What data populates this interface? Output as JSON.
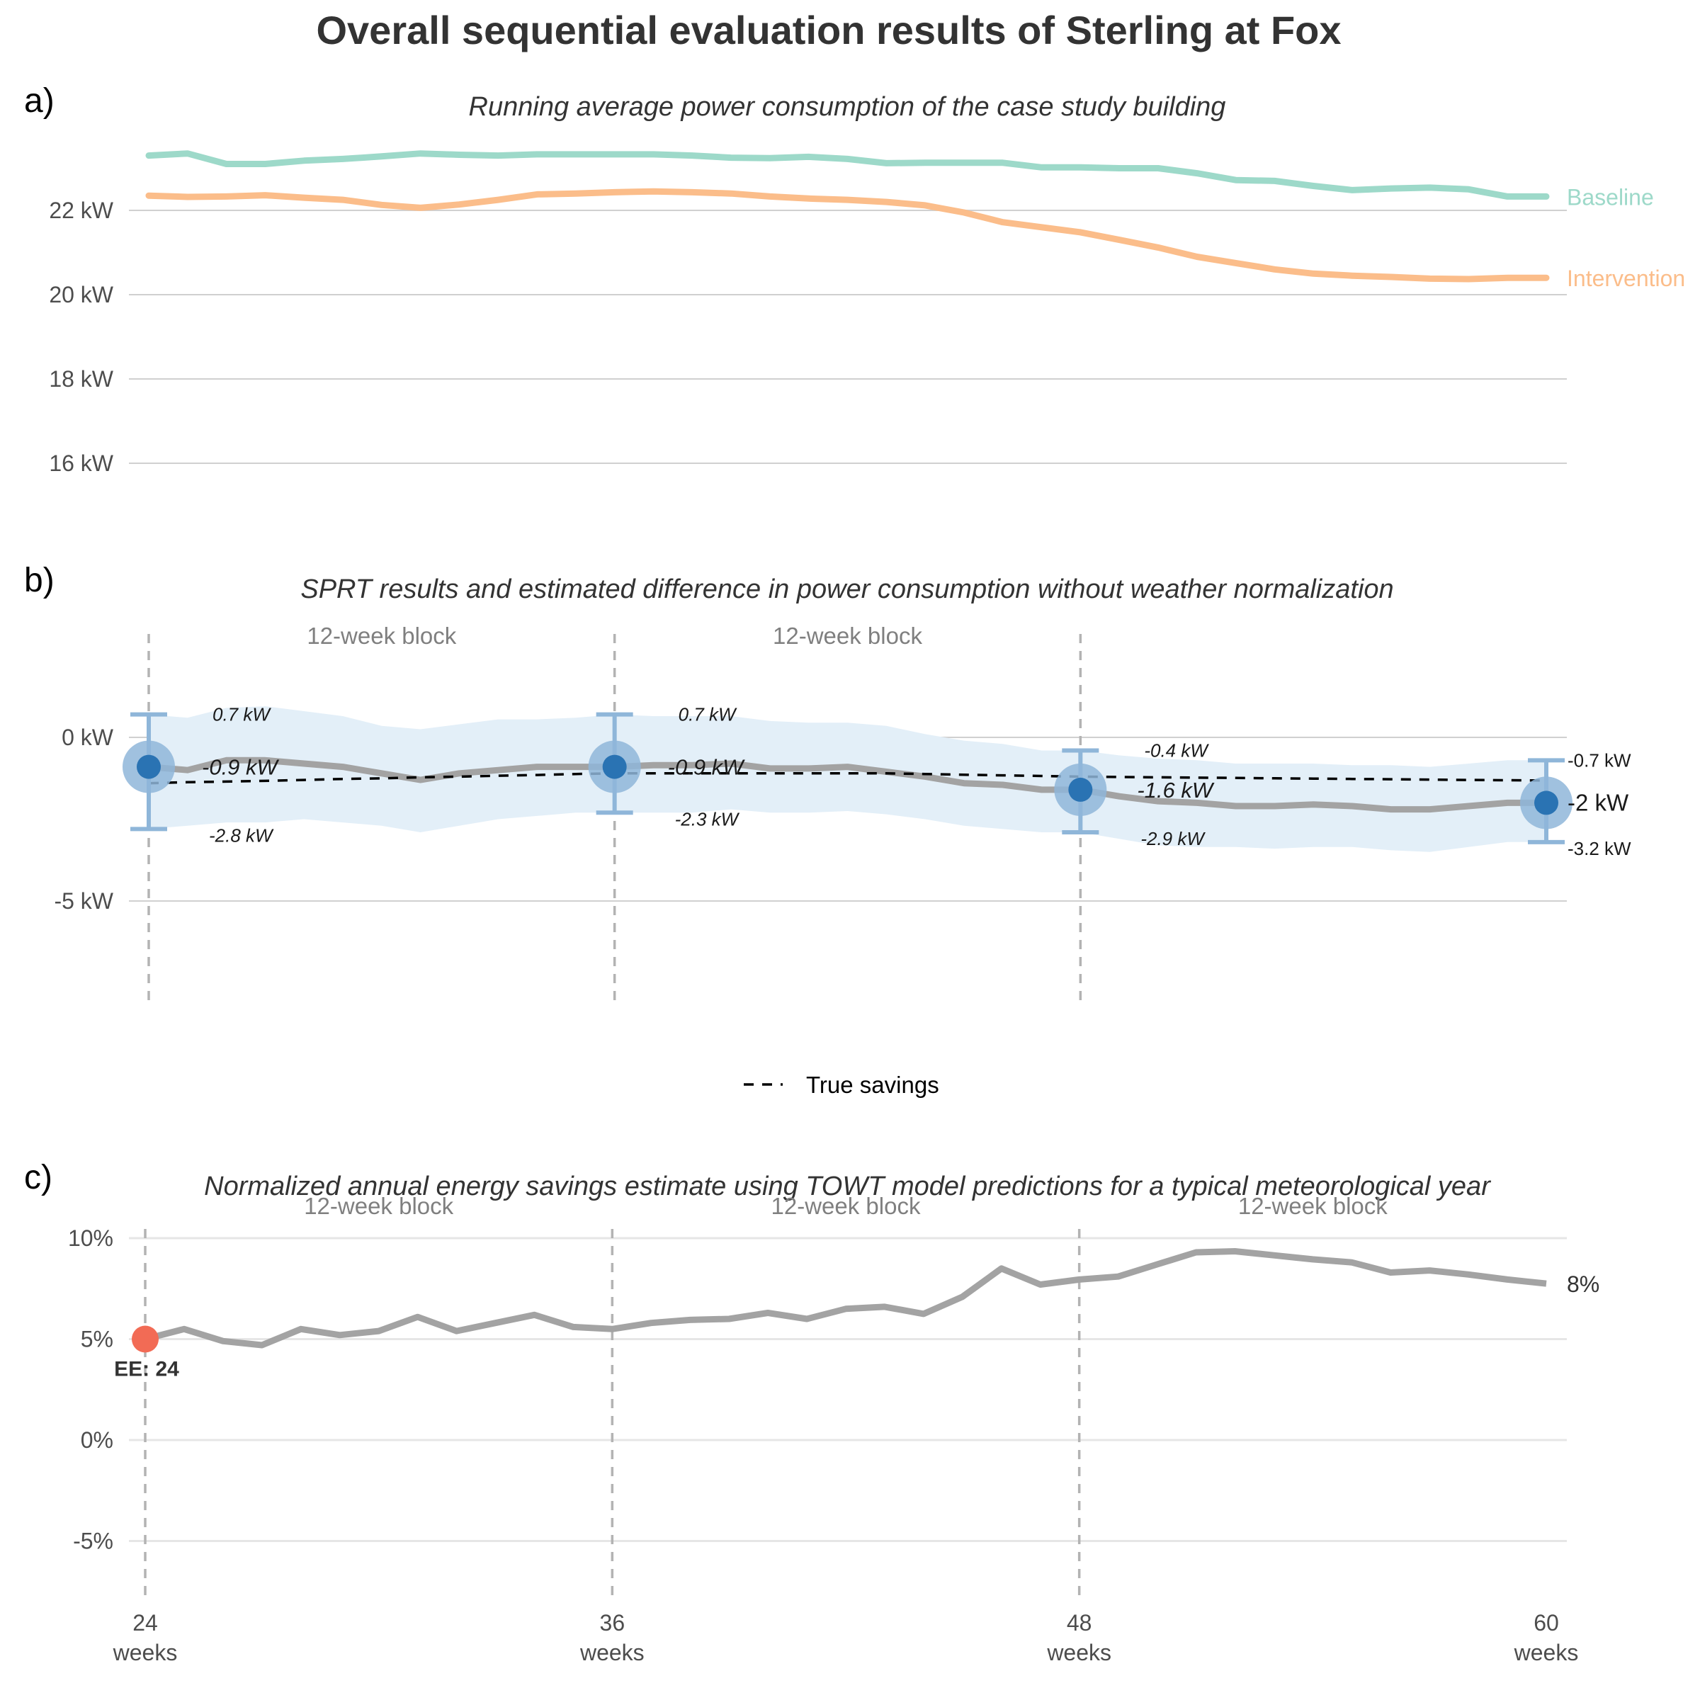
{
  "figure": {
    "title": "Overall sequential evaluation results of Sterling at Fox",
    "colors": {
      "baseline": "#9dd9c9",
      "intervention": "#fbbd8a",
      "estimate_line": "#a3a3a3",
      "ci_ribbon": "#e3eff8",
      "point": "#2a73b3",
      "point_halo": "#8fb6d9",
      "early_exit": "#f26b55",
      "gridline": "#d0d0d0",
      "block_divider": "#b3b3b3"
    }
  },
  "chart_data": [
    {
      "panel": "a)",
      "type": "line",
      "title": "Running average power consumption of the case study building",
      "x": [
        24,
        25,
        26,
        27,
        28,
        29,
        30,
        31,
        32,
        33,
        34,
        35,
        36,
        37,
        38,
        39,
        40,
        41,
        42,
        43,
        44,
        45,
        46,
        47,
        48,
        49,
        50,
        51,
        52,
        53,
        54,
        55,
        56,
        57,
        58,
        59,
        60
      ],
      "series": [
        {
          "name": "Baseline",
          "color": "#9dd9c9",
          "values": [
            23.3,
            23.35,
            23.1,
            23.1,
            23.18,
            23.22,
            23.28,
            23.35,
            23.32,
            23.3,
            23.33,
            23.33,
            23.33,
            23.33,
            23.3,
            23.25,
            23.24,
            23.27,
            23.22,
            23.12,
            23.13,
            23.13,
            23.13,
            23.02,
            23.02,
            23.0,
            23.0,
            22.88,
            22.72,
            22.7,
            22.58,
            22.48,
            22.52,
            22.54,
            22.5,
            22.33,
            22.33
          ]
        },
        {
          "name": "Intervention",
          "color": "#fbbd8a",
          "values": [
            22.35,
            22.32,
            22.33,
            22.36,
            22.3,
            22.25,
            22.13,
            22.06,
            22.14,
            22.25,
            22.38,
            22.4,
            22.43,
            22.45,
            22.43,
            22.4,
            22.33,
            22.28,
            22.25,
            22.2,
            22.12,
            21.95,
            21.72,
            21.6,
            21.48,
            21.3,
            21.12,
            20.9,
            20.75,
            20.6,
            20.5,
            20.45,
            20.42,
            20.38,
            20.37,
            20.4,
            20.4
          ]
        }
      ],
      "yticks": [
        16,
        18,
        20,
        22
      ],
      "ytick_labels": [
        "16 kW",
        "18 kW",
        "20 kW",
        "22 kW"
      ],
      "ylim": [
        15.5,
        24
      ],
      "grid": true
    },
    {
      "panel": "b)",
      "type": "line",
      "title": "SPRT results and estimated difference in power consumption without weather normalization",
      "x": [
        24,
        25,
        26,
        27,
        28,
        29,
        30,
        31,
        32,
        33,
        34,
        35,
        36,
        37,
        38,
        39,
        40,
        41,
        42,
        43,
        44,
        45,
        46,
        47,
        48,
        49,
        50,
        51,
        52,
        53,
        54,
        55,
        56,
        57,
        58,
        59,
        60
      ],
      "estimate": [
        -0.9,
        -1.0,
        -0.7,
        -0.7,
        -0.8,
        -0.9,
        -1.1,
        -1.3,
        -1.1,
        -1.0,
        -0.9,
        -0.9,
        -0.9,
        -0.85,
        -0.85,
        -0.8,
        -0.95,
        -0.95,
        -0.9,
        -1.05,
        -1.2,
        -1.4,
        -1.45,
        -1.6,
        -1.6,
        -1.8,
        -1.95,
        -2.0,
        -2.1,
        -2.1,
        -2.05,
        -2.1,
        -2.2,
        -2.2,
        -2.1,
        -2.0,
        -2.0
      ],
      "ci_lower": [
        -2.8,
        -2.7,
        -2.6,
        -2.6,
        -2.5,
        -2.6,
        -2.7,
        -2.9,
        -2.7,
        -2.5,
        -2.4,
        -2.3,
        -2.3,
        -2.3,
        -2.3,
        -2.2,
        -2.3,
        -2.3,
        -2.25,
        -2.35,
        -2.5,
        -2.7,
        -2.8,
        -2.9,
        -2.9,
        -3.1,
        -3.3,
        -3.35,
        -3.35,
        -3.4,
        -3.35,
        -3.35,
        -3.45,
        -3.5,
        -3.35,
        -3.2,
        -3.2
      ],
      "ci_upper": [
        0.7,
        0.6,
        0.9,
        0.95,
        0.8,
        0.65,
        0.35,
        0.25,
        0.4,
        0.55,
        0.55,
        0.6,
        0.7,
        0.65,
        0.65,
        0.65,
        0.5,
        0.45,
        0.45,
        0.35,
        0.1,
        -0.1,
        -0.2,
        -0.4,
        -0.4,
        -0.55,
        -0.65,
        -0.7,
        -0.8,
        -0.8,
        -0.8,
        -0.85,
        -0.85,
        -0.9,
        -0.8,
        -0.7,
        -0.7
      ],
      "true_savings": [
        -1.4,
        -1.37,
        -1.35,
        -1.33,
        -1.3,
        -1.27,
        -1.25,
        -1.22,
        -1.2,
        -1.17,
        -1.15,
        -1.12,
        -1.1,
        -1.1,
        -1.1,
        -1.1,
        -1.1,
        -1.1,
        -1.1,
        -1.1,
        -1.12,
        -1.14,
        -1.16,
        -1.18,
        -1.2,
        -1.21,
        -1.22,
        -1.23,
        -1.24,
        -1.25,
        -1.26,
        -1.27,
        -1.28,
        -1.29,
        -1.3,
        -1.31,
        -1.32
      ],
      "checkpoints": [
        {
          "x": 24,
          "estimate": -0.9,
          "lower": -2.8,
          "upper": 0.7,
          "label_est": "-0.9 kW",
          "label_lower": "-2.8 kW",
          "label_upper": "0.7 kW"
        },
        {
          "x": 36,
          "estimate": -0.9,
          "lower": -2.3,
          "upper": 0.7,
          "label_est": "-0.9 kW",
          "label_lower": "-2.3 kW",
          "label_upper": "0.7 kW"
        },
        {
          "x": 48,
          "estimate": -1.6,
          "lower": -2.9,
          "upper": -0.4,
          "label_est": "-1.6 kW",
          "label_lower": "-2.9 kW",
          "label_upper": "-0.4 kW"
        },
        {
          "x": 60,
          "estimate": -2.0,
          "lower": -3.2,
          "upper": -0.7,
          "label_est": "-2 kW",
          "label_lower": "-3.2 kW",
          "label_upper": "-0.7 kW"
        }
      ],
      "block_labels": [
        "12-week block",
        "12-week block"
      ],
      "legend": {
        "entries": [
          "True savings"
        ],
        "placement": "bottom"
      },
      "yticks": [
        -5,
        0
      ],
      "ytick_labels": [
        "-5 kW",
        "0 kW"
      ],
      "ylim": [
        -8,
        3
      ],
      "grid": true
    },
    {
      "panel": "c)",
      "type": "line",
      "title": "Normalized annual energy savings estimate using TOWT model predictions for a typical meteorological year",
      "x": [
        24,
        25,
        26,
        27,
        28,
        29,
        30,
        31,
        32,
        33,
        34,
        35,
        36,
        37,
        38,
        39,
        40,
        41,
        42,
        43,
        44,
        45,
        46,
        47,
        48,
        49,
        50,
        51,
        52,
        53,
        54,
        55,
        56,
        57,
        58,
        59,
        60
      ],
      "values": [
        5.0,
        5.5,
        4.9,
        4.7,
        5.5,
        5.2,
        5.4,
        6.1,
        5.4,
        5.8,
        6.2,
        5.6,
        5.5,
        5.8,
        5.95,
        6.0,
        6.3,
        6.0,
        6.5,
        6.6,
        6.25,
        7.1,
        8.5,
        7.7,
        7.95,
        8.1,
        8.7,
        9.3,
        9.35,
        9.15,
        8.95,
        8.8,
        8.3,
        8.4,
        8.2,
        7.95,
        7.75
      ],
      "end_label": "8%",
      "early_exit": {
        "x": 24,
        "value": 5.0,
        "label": "EE: 24"
      },
      "block_labels": [
        "12-week block",
        "12-week block",
        "12-week block"
      ],
      "yticks": [
        -5,
        0,
        5,
        10
      ],
      "ytick_labels": [
        "-5%",
        "0%",
        "5%",
        "10%"
      ],
      "ylim": [
        -8,
        11
      ],
      "xticks": [
        24,
        36,
        48,
        60
      ],
      "xtick_labels": [
        [
          "24",
          "weeks"
        ],
        [
          "36",
          "weeks"
        ],
        [
          "48",
          "weeks"
        ],
        [
          "60",
          "weeks"
        ]
      ],
      "grid": true
    }
  ]
}
